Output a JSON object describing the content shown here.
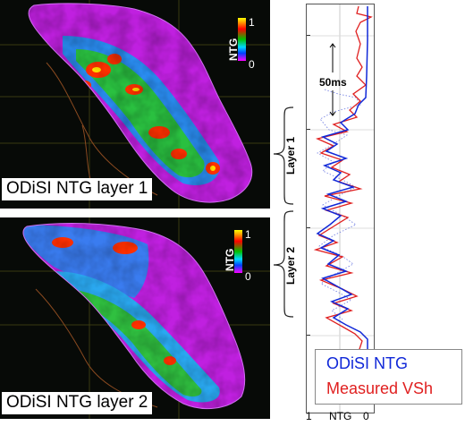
{
  "maps": [
    {
      "caption": "ODiSI NTG layer 1",
      "colorbar": {
        "title": "NTG",
        "max_label": "1",
        "min_label": "0"
      }
    },
    {
      "caption": "ODiSI NTG layer 2",
      "colorbar": {
        "title": "NTG",
        "max_label": "1",
        "min_label": "0"
      }
    }
  ],
  "log": {
    "annotation": "50ms",
    "layers": [
      "Layer 1",
      "Layer 2"
    ],
    "axis": {
      "left": "1",
      "center": "NTG",
      "right": "0"
    },
    "legend": {
      "curve_a": "ODiSI NTG",
      "curve_b": "Measured VSh"
    }
  },
  "colors": {
    "ntg_curve": "#1028d8",
    "vsh_curve": "#e02020",
    "map_background": "#070a07"
  }
}
